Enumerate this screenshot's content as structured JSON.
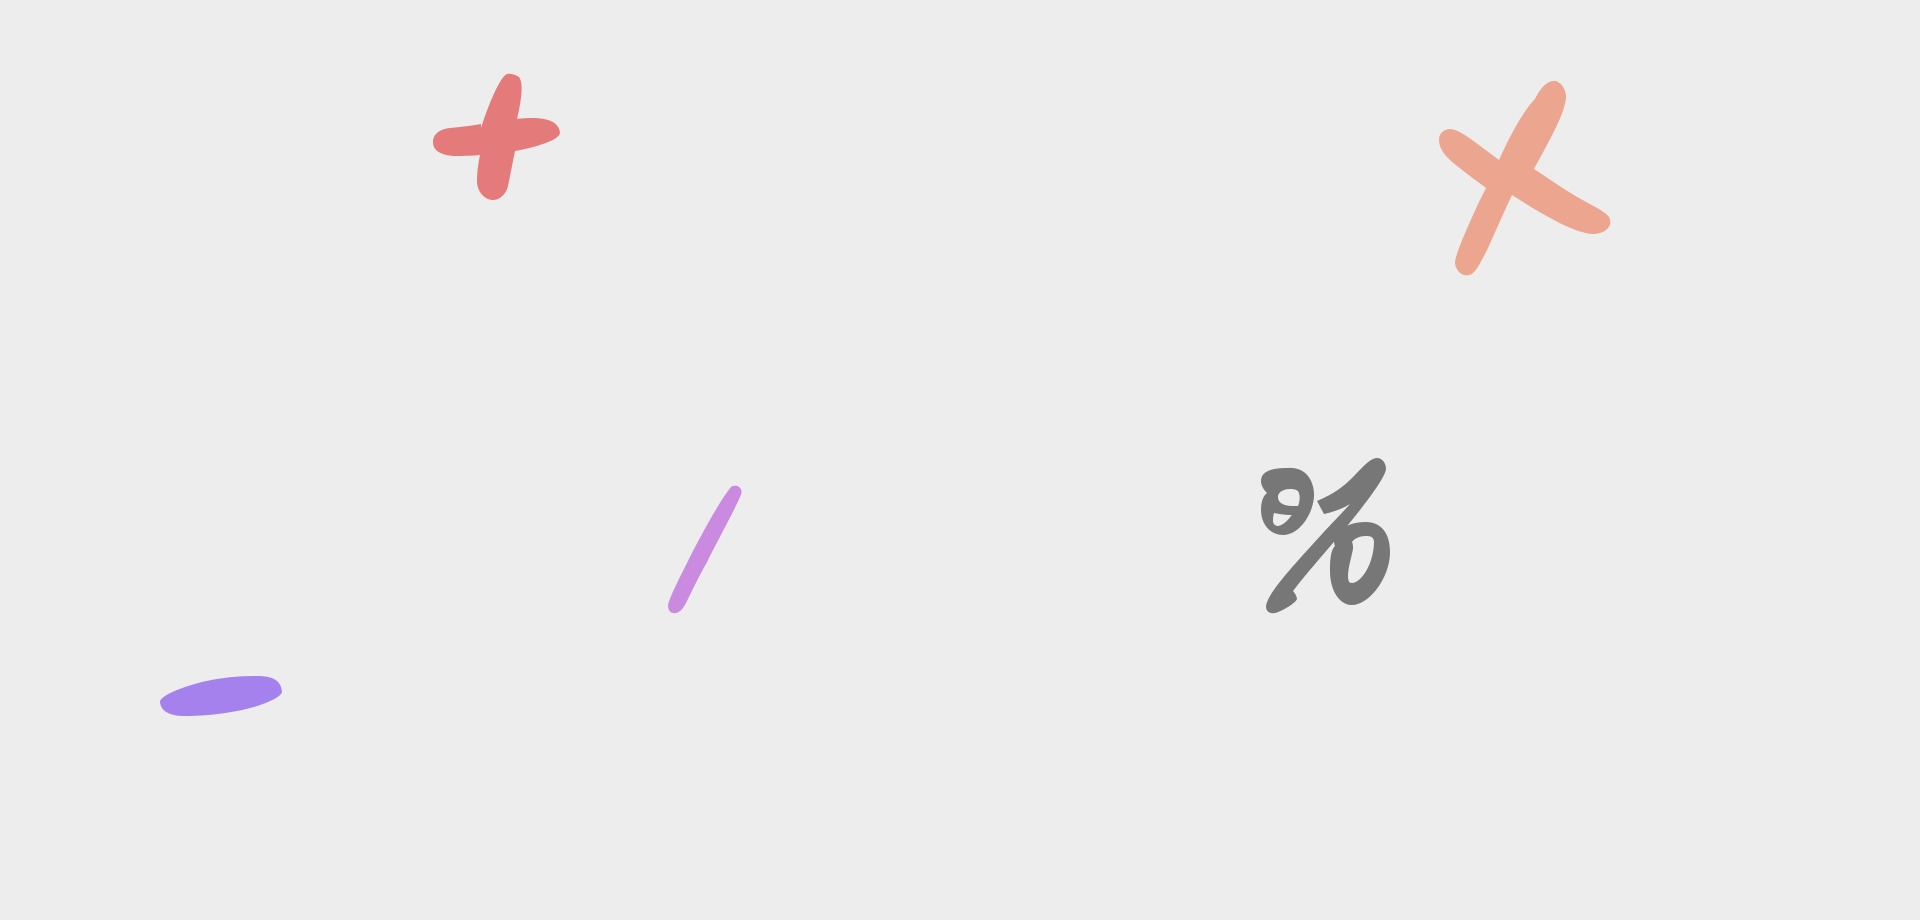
{
  "symbols": {
    "plus": {
      "glyph": "+",
      "color": "#e57a7a"
    },
    "times": {
      "glyph": "×",
      "color": "#eca58f"
    },
    "slash": {
      "glyph": "/",
      "color": "#c98ae0"
    },
    "percent": {
      "glyph": "%",
      "color": "#777777"
    },
    "minus": {
      "glyph": "−",
      "color": "#a581ee"
    }
  },
  "background": "#ededed"
}
